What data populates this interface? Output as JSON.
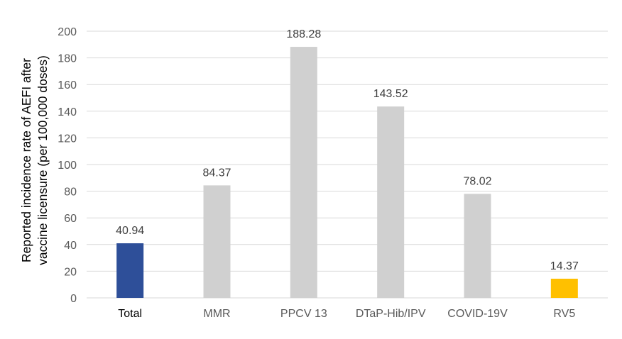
{
  "chart_data": {
    "type": "bar",
    "title": "",
    "xlabel": "",
    "ylabel": [
      "Reported incidence rate of AEFI after",
      "vaccine licensure (per 100,000 doses)"
    ],
    "categories": [
      "Total",
      "MMR",
      "PPCV 13",
      "DTaP-Hib/IPV",
      "COVID-19V",
      "RV5"
    ],
    "values": [
      40.94,
      84.37,
      188.28,
      143.52,
      78.02,
      14.37
    ],
    "value_labels": [
      "40.94",
      "84.37",
      "188.28",
      "143.52",
      "78.02",
      "14.37"
    ],
    "bar_colors": [
      "#2e4f99",
      "#d0d0d0",
      "#d0d0d0",
      "#d0d0d0",
      "#d0d0d0",
      "#ffc000"
    ],
    "category_label_colors": [
      "#000000",
      "#595959",
      "#595959",
      "#595959",
      "#595959",
      "#595959"
    ],
    "ylim": [
      0,
      200
    ],
    "yticks": [
      "0",
      "20",
      "40",
      "60",
      "80",
      "100",
      "120",
      "140",
      "160",
      "180",
      "200"
    ],
    "grid": true,
    "legend": "none",
    "colors": {
      "grid": "#d9d9d9",
      "tick_text": "#595959",
      "value_text": "#404040",
      "axis_title": "#000000"
    }
  }
}
